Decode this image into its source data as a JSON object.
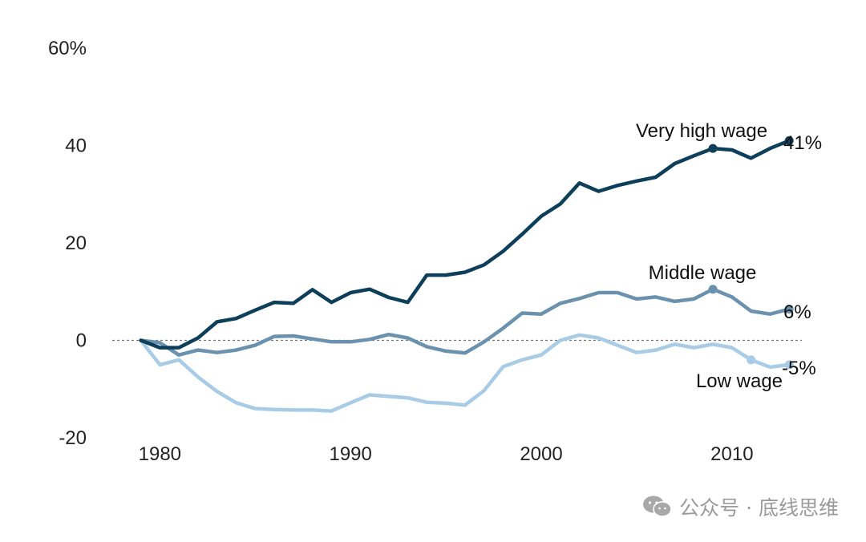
{
  "chart_data": {
    "type": "line",
    "x": [
      1979,
      1980,
      1981,
      1982,
      1983,
      1984,
      1985,
      1986,
      1987,
      1988,
      1989,
      1990,
      1991,
      1992,
      1993,
      1994,
      1995,
      1996,
      1997,
      1998,
      1999,
      2000,
      2001,
      2002,
      2003,
      2004,
      2005,
      2006,
      2007,
      2008,
      2009,
      2010,
      2011,
      2012,
      2013
    ],
    "xlim": [
      1977,
      2014
    ],
    "ylim": [
      -20,
      60
    ],
    "x_ticks": [
      1980,
      1990,
      2000,
      2010
    ],
    "y_ticks": [
      -20,
      0,
      20,
      40,
      60
    ],
    "y_tick_labels": [
      "-20",
      "0",
      "20",
      "40",
      "60%"
    ],
    "zero_line": "dashed",
    "grid": false,
    "series": [
      {
        "name": "Very high wage",
        "end_label": "41%",
        "color": "#0d3f5a",
        "values": [
          0,
          -1.5,
          -1.5,
          0.5,
          3.8,
          4.5,
          6.2,
          7.8,
          7.6,
          10.4,
          7.8,
          9.8,
          10.5,
          8.8,
          7.8,
          13.4,
          13.4,
          14.0,
          15.5,
          18.3,
          21.8,
          25.5,
          28.0,
          32.3,
          30.6,
          31.8,
          32.7,
          33.5,
          36.3,
          37.9,
          39.4,
          39.1,
          37.4,
          39.4,
          41.0
        ],
        "markers": [
          2009,
          2013
        ]
      },
      {
        "name": "Middle wage",
        "end_label": "6%",
        "color": "#6a92ae",
        "values": [
          0,
          -0.5,
          -3.0,
          -2.0,
          -2.5,
          -2.0,
          -1.0,
          0.8,
          0.9,
          0.3,
          -0.3,
          -0.3,
          0.2,
          1.2,
          0.5,
          -1.3,
          -2.2,
          -2.6,
          -0.3,
          2.5,
          5.6,
          5.4,
          7.6,
          8.6,
          9.8,
          9.8,
          8.5,
          8.9,
          8.0,
          8.5,
          10.5,
          8.9,
          6.0,
          5.4,
          6.4
        ],
        "markers": [
          2009,
          2013
        ]
      },
      {
        "name": "Low wage",
        "end_label": "-5%",
        "color": "#a8cbe6",
        "values": [
          0,
          -5.0,
          -4.0,
          -7.5,
          -10.5,
          -12.8,
          -14.0,
          -14.2,
          -14.3,
          -14.3,
          -14.5,
          -12.8,
          -11.2,
          -11.5,
          -11.8,
          -12.7,
          -12.9,
          -13.3,
          -10.3,
          -5.4,
          -4.0,
          -3.0,
          0,
          1.1,
          0.5,
          -1.0,
          -2.5,
          -2.0,
          -0.8,
          -1.5,
          -0.8,
          -1.5,
          -4.0,
          -5.5,
          -5.0
        ],
        "markers": [
          2011,
          2013
        ]
      }
    ]
  },
  "watermark": {
    "icon": "wechat-icon",
    "text": "公众号 · 底线思维"
  }
}
